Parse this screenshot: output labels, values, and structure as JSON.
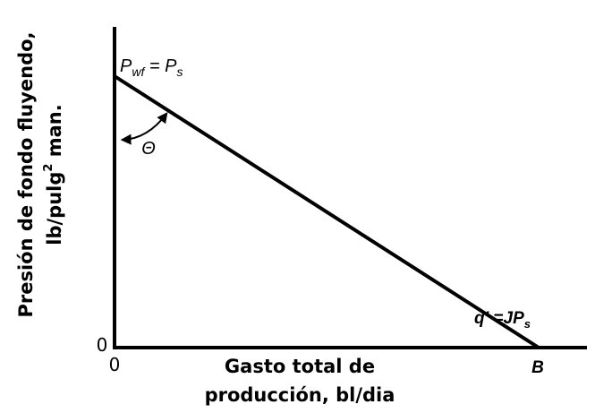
{
  "y_axis_label": {
    "line1": "Presión de fondo fluyendo,",
    "line2": {
      "before": "lb/pulg",
      "sup": "2",
      "after": " man."
    }
  },
  "x_axis_label": {
    "line1": "Gasto total de",
    "line2": "producción, bl/dia"
  },
  "y_origin": "0",
  "x_origin": "0",
  "top_annotation": {
    "p1": "P",
    "sub1": "wf",
    "mid": " = P",
    "sub2": "s"
  },
  "angle": "Θ",
  "end_annotation": {
    "main": "q' =JP",
    "sub": "s"
  },
  "end_point": "B"
}
